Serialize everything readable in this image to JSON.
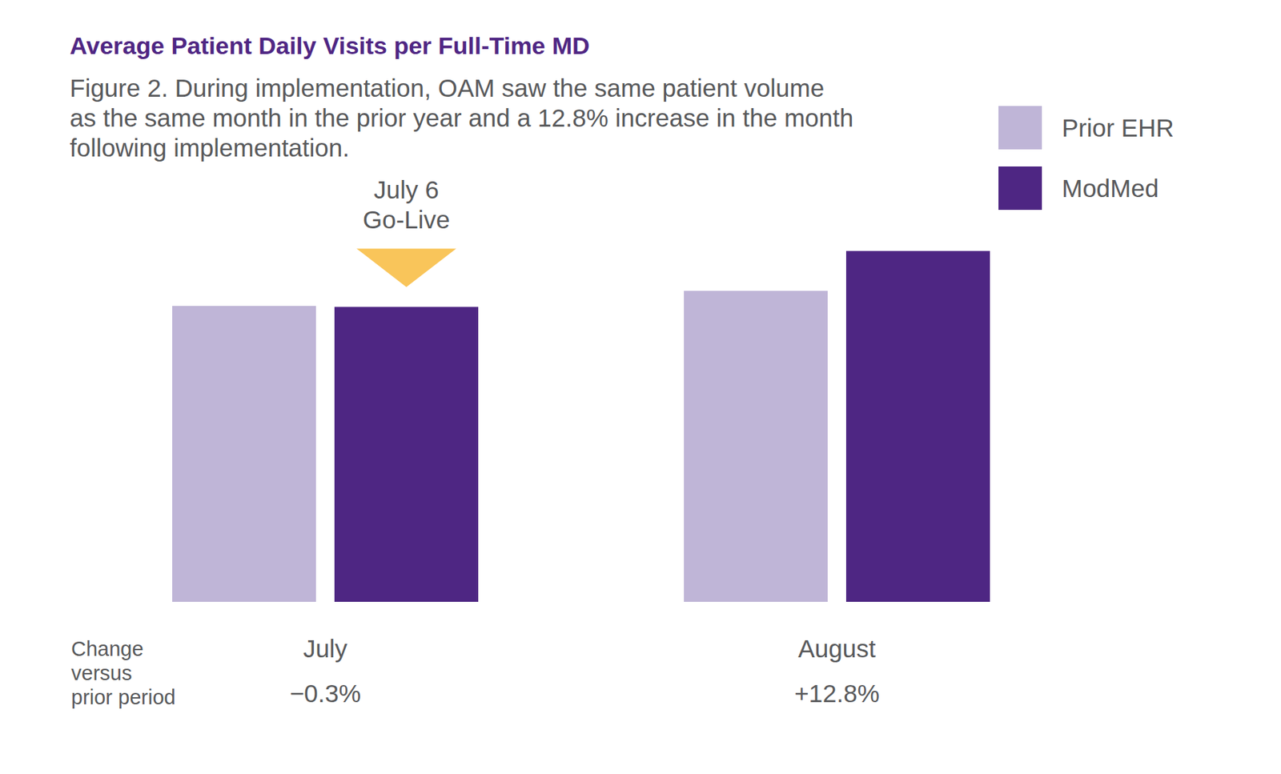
{
  "chart_data": {
    "type": "bar",
    "title": "Average Patient Daily Visits per Full-Time MD",
    "subtitle": [
      "Figure 2. During implementation, OAM saw the same patient volume",
      "as the same month in the prior year and a 12.8% increase in the month",
      "following implementation."
    ],
    "categories": [
      "July",
      "August"
    ],
    "series": [
      {
        "name": "Prior EHR",
        "color": "#bfb5d7",
        "values": [
          25.4,
          26.7
        ]
      },
      {
        "name": "ModMed",
        "color": "#4e2683",
        "values": [
          25.32,
          30.12
        ]
      }
    ],
    "ylim": [
      0,
      32
    ],
    "yticks": [],
    "tick_labels": "x",
    "grid": false,
    "legend": "top-right",
    "annotation": [
      "July 6",
      "Go-Live"
    ],
    "change_label": [
      "Change",
      "versus",
      "prior period"
    ],
    "change_values": [
      {
        "value": -0.3,
        "label": "−0.3%"
      },
      {
        "value": 12.8,
        "label": "+12.8%"
      }
    ]
  }
}
